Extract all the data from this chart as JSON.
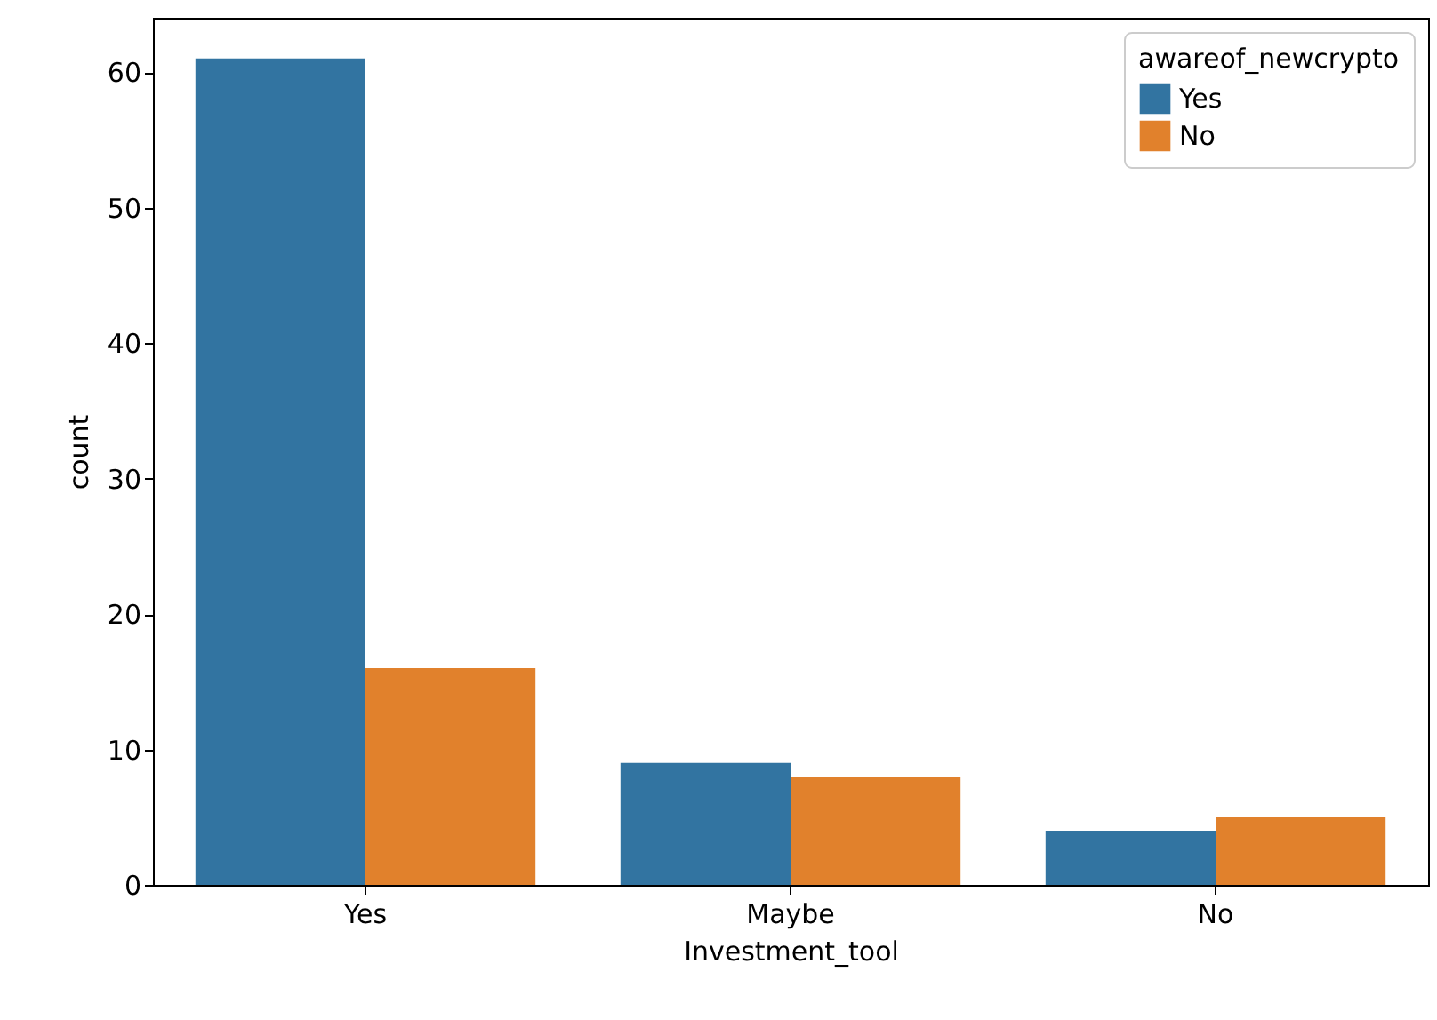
{
  "chart_data": {
    "type": "bar",
    "xlabel": "Investment_tool",
    "ylabel": "count",
    "legend_title": "awareof_newcrypto",
    "categories": [
      "Yes",
      "Maybe",
      "No"
    ],
    "series": [
      {
        "name": "Yes",
        "color": "#3274a1",
        "values": [
          61,
          9,
          4
        ]
      },
      {
        "name": "No",
        "color": "#e1812c",
        "values": [
          16,
          8,
          5
        ]
      }
    ],
    "ylim": [
      0,
      64
    ],
    "yticks": [
      0,
      10,
      20,
      30,
      40,
      50,
      60
    ],
    "grid": false,
    "legend": "top right"
  }
}
